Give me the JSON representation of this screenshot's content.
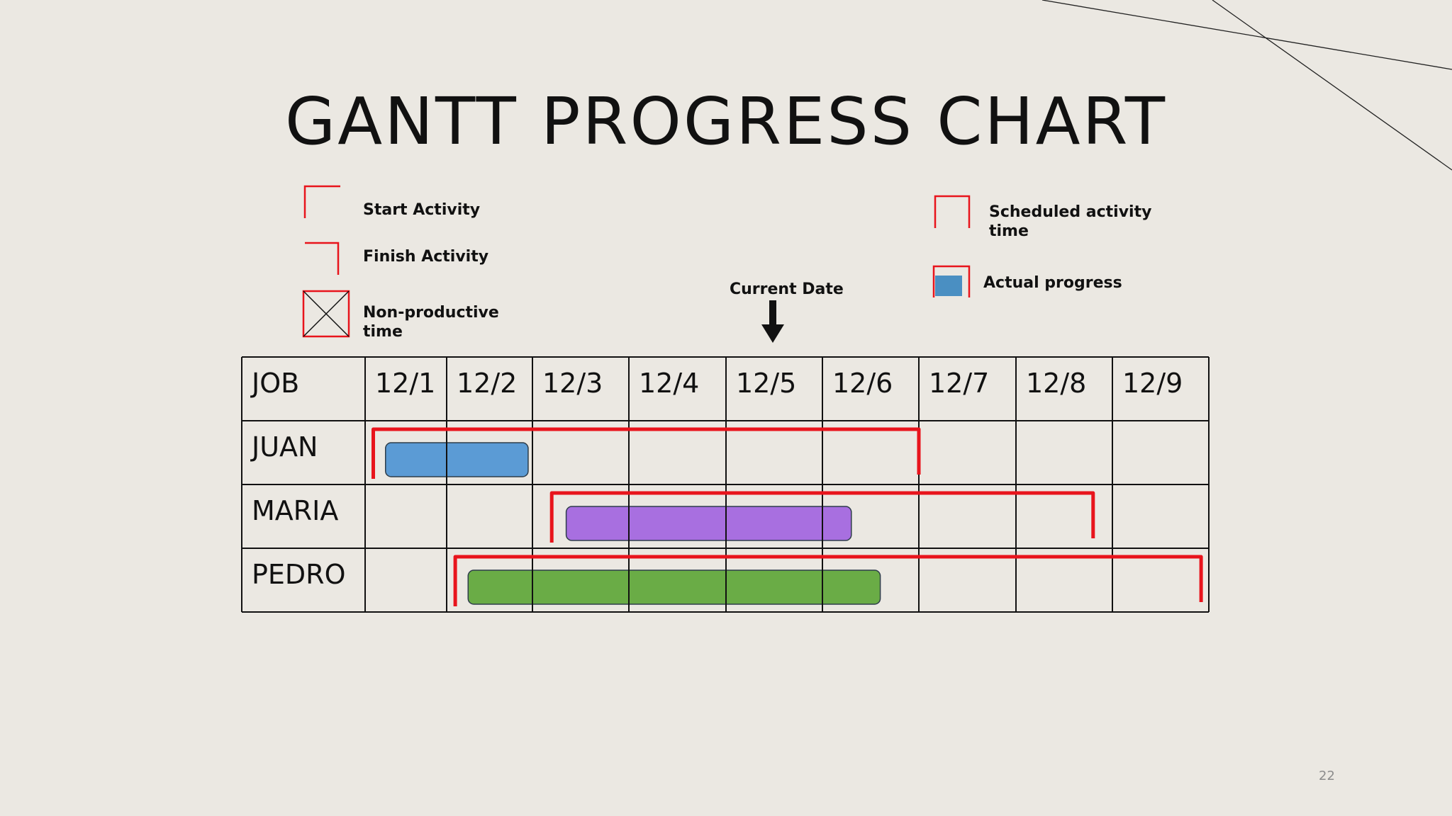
{
  "slide": {
    "title": "GANTT PROGRESS CHART",
    "page_number": "22"
  },
  "legend": {
    "start_activity": "Start Activity",
    "finish_activity": "Finish Activity",
    "non_productive_line1": "Non-productive",
    "non_productive_line2": "time",
    "scheduled_line1": "Scheduled activity",
    "scheduled_line2": "time",
    "actual_progress": "Actual progress",
    "current_date": "Current Date"
  },
  "colors": {
    "background": "#ebe8e2",
    "schedule_bracket": "#e8141c",
    "grid_line": "#111111",
    "juan_bar": "#5b9bd5",
    "maria_bar": "#a86fe0",
    "pedro_bar": "#6aac46",
    "legend_progress": "#4a8fc2"
  },
  "chart_data": {
    "type": "table",
    "title": "GANTT PROGRESS CHART",
    "header_label": "JOB",
    "dates": [
      "12/1",
      "12/2",
      "12/3",
      "12/4",
      "12/5",
      "12/6",
      "12/7",
      "12/8",
      "12/9"
    ],
    "current_date": "12/5",
    "jobs": [
      {
        "name": "JUAN",
        "scheduled_start": 0.1,
        "scheduled_end": 6.0,
        "progress_start": 0.25,
        "progress_end": 1.95,
        "bar_color": "#5b9bd5"
      },
      {
        "name": "MARIA",
        "scheduled_start": 2.2,
        "scheduled_end": 7.8,
        "progress_start": 2.35,
        "progress_end": 5.3,
        "bar_color": "#a86fe0"
      },
      {
        "name": "PEDRO",
        "scheduled_start": 1.1,
        "scheduled_end": 8.92,
        "progress_start": 1.25,
        "progress_end": 5.6,
        "bar_color": "#6aac46"
      }
    ]
  }
}
